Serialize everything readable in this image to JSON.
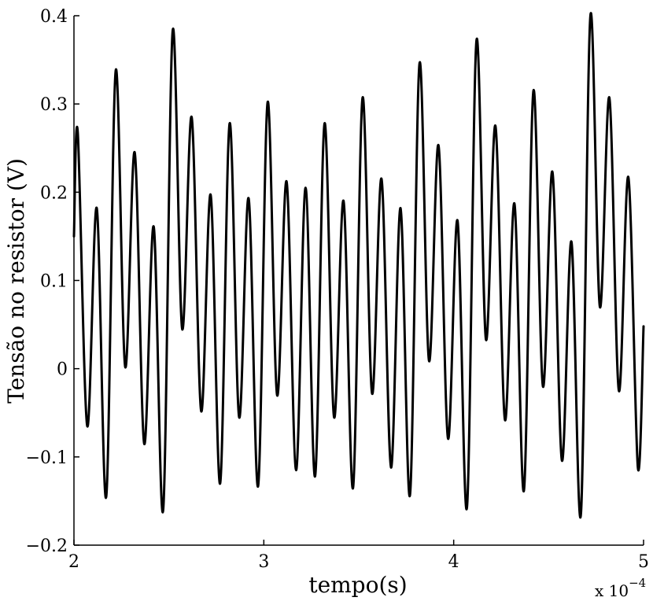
{
  "chart_data": {
    "type": "line",
    "title": "",
    "xlabel": "tempo(s)",
    "ylabel": "Tensão no resistor (V)",
    "x_multiplier": "x 10",
    "x_multiplier_exp": "−4",
    "xlim": [
      2,
      5
    ],
    "ylim": [
      -0.2,
      0.4
    ],
    "xticks": [
      "2",
      "3",
      "4",
      "5"
    ],
    "yticks": [
      "−0.2",
      "−0.1",
      "0",
      "0.1",
      "0.2",
      "0.3",
      "0.4"
    ],
    "xtick_values": [
      2,
      3,
      4,
      5
    ],
    "ytick_values": [
      -0.2,
      -0.1,
      0,
      0.1,
      0.2,
      0.3,
      0.4
    ],
    "grid": false,
    "line_color": "#000000",
    "series": [
      {
        "x": [
          2.0,
          2.02,
          2.07,
          2.12,
          2.17,
          2.22,
          2.27,
          2.32,
          2.37,
          2.42,
          2.47,
          2.52,
          2.57,
          2.62,
          2.67,
          2.72,
          2.77,
          2.82,
          2.87,
          2.92,
          2.97,
          3.02,
          3.07,
          3.12,
          3.17,
          3.22,
          3.27,
          3.32,
          3.37,
          3.42,
          3.47,
          3.52,
          3.57,
          3.62,
          3.67,
          3.72,
          3.77,
          3.82,
          3.87,
          3.92,
          3.97,
          4.02,
          4.07,
          4.12,
          4.17,
          4.22,
          4.27,
          4.32,
          4.37,
          4.42,
          4.47,
          4.52,
          4.57,
          4.62,
          4.67,
          4.72,
          4.77,
          4.82,
          4.87,
          4.92,
          4.97,
          5.0
        ],
        "y": [
          0.15,
          0.268,
          -0.065,
          0.182,
          -0.145,
          0.338,
          0.002,
          0.245,
          -0.085,
          0.161,
          -0.16,
          0.383,
          0.045,
          0.285,
          -0.048,
          0.197,
          -0.13,
          0.278,
          -0.055,
          0.193,
          -0.133,
          0.302,
          -0.03,
          0.212,
          -0.115,
          0.205,
          -0.122,
          0.278,
          -0.055,
          0.19,
          -0.135,
          0.307,
          -0.028,
          0.215,
          -0.112,
          0.182,
          -0.143,
          0.346,
          0.009,
          0.253,
          -0.079,
          0.168,
          -0.157,
          0.372,
          0.033,
          0.275,
          -0.058,
          0.187,
          -0.138,
          0.315,
          -0.02,
          0.223,
          -0.104,
          0.144,
          -0.165,
          0.4,
          0.07,
          0.307,
          -0.025,
          0.217,
          -0.112,
          0.048
        ]
      }
    ]
  }
}
